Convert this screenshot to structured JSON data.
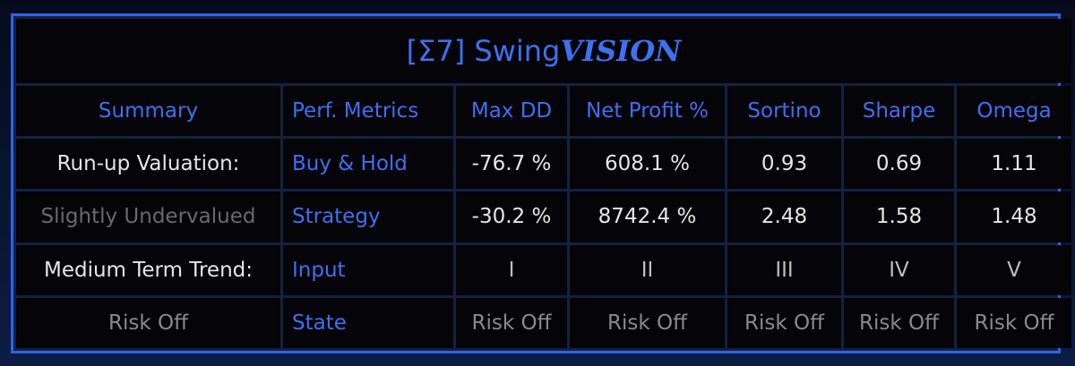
{
  "title_prefix": "[Σ7] Swing",
  "title_emphasis": "VISION",
  "table": {
    "rows": [
      [
        "Summary",
        "Perf. Metrics",
        "Max DD",
        "Net Profit %",
        "Sortino",
        "Sharpe",
        "Omega"
      ],
      [
        "Run-up Valuation:",
        "Buy & Hold",
        "-76.7 %",
        "608.1 %",
        "0.93",
        "0.69",
        "1.11"
      ],
      [
        "Slightly Undervalued",
        "Strategy",
        "-30.2 %",
        "8742.4 %",
        "2.48",
        "1.58",
        "1.48"
      ],
      [
        "Medium Term Trend:",
        "Input",
        "I",
        "II",
        "III",
        "IV",
        "V"
      ],
      [
        "Risk Off",
        "State",
        "Risk Off",
        "Risk Off",
        "Risk Off",
        "Risk Off",
        "Risk Off"
      ]
    ]
  }
}
